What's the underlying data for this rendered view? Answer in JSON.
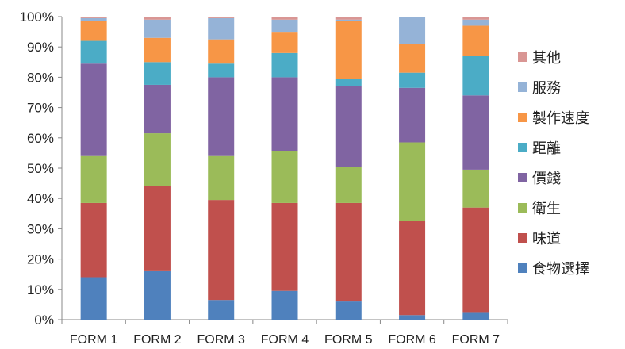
{
  "chart_data": {
    "type": "bar",
    "stacked": true,
    "percent": true,
    "title": "",
    "xlabel": "",
    "ylabel": "",
    "ylim": [
      0,
      100
    ],
    "yticks": [
      "0%",
      "10%",
      "20%",
      "30%",
      "40%",
      "50%",
      "60%",
      "70%",
      "80%",
      "90%",
      "100%"
    ],
    "grid": false,
    "legend": "right",
    "categories": [
      "FORM 1",
      "FORM 2",
      "FORM 3",
      "FORM 4",
      "FORM 5",
      "FORM 6",
      "FORM 7"
    ],
    "series": [
      {
        "name": "食物選擇",
        "color": "#4F81BD",
        "values": [
          14,
          16,
          6.5,
          9.5,
          6,
          1.5,
          2.5
        ]
      },
      {
        "name": "味道",
        "color": "#C0504D",
        "values": [
          24.5,
          28,
          33,
          29,
          32.5,
          31,
          34.5
        ]
      },
      {
        "name": "衛生",
        "color": "#9BBB59",
        "values": [
          15.5,
          17.5,
          14.5,
          17,
          12,
          26,
          12.5
        ]
      },
      {
        "name": "價錢",
        "color": "#8064A2",
        "values": [
          30.5,
          16,
          26,
          24.5,
          26.5,
          18,
          24.5
        ]
      },
      {
        "name": "距離",
        "color": "#4BACC6",
        "values": [
          7.5,
          7.5,
          4.5,
          8,
          2.5,
          5,
          13
        ]
      },
      {
        "name": "製作速度",
        "color": "#F79646",
        "values": [
          6.5,
          8,
          8,
          7,
          19,
          9.5,
          10
        ]
      },
      {
        "name": "服務",
        "color": "#95B3D7",
        "values": [
          1,
          6,
          7,
          4,
          0.5,
          9,
          2
        ]
      },
      {
        "name": "其他",
        "color": "#D99694",
        "values": [
          0.5,
          1,
          0.5,
          1,
          1,
          0,
          1
        ]
      }
    ]
  }
}
